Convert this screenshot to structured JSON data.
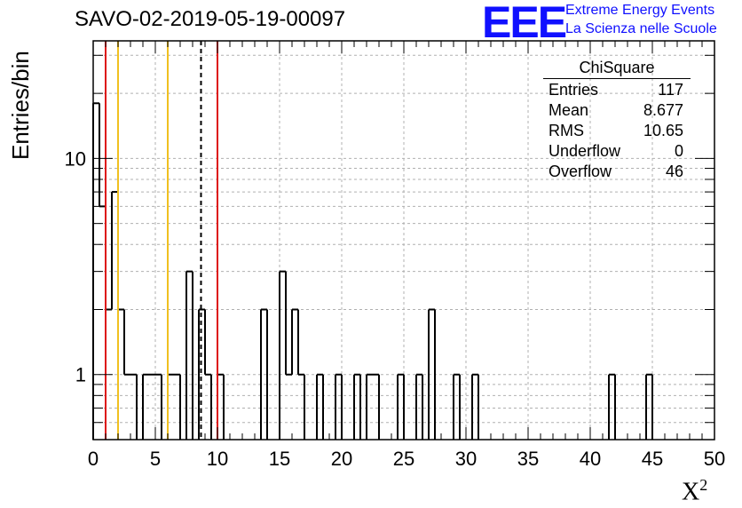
{
  "title": "SAVO-02-2019-05-19-00097",
  "logo": {
    "mark": "EEE",
    "line1": "Extreme Energy Events",
    "line2": "La Scienza nelle Scuole",
    "color": "#1010ff"
  },
  "stats": {
    "name": "ChiSquare",
    "rows": [
      {
        "label": "Entries",
        "value": "117"
      },
      {
        "label": "Mean",
        "value": "8.677"
      },
      {
        "label": "RMS",
        "value": "10.65"
      },
      {
        "label": "Underflow",
        "value": "0"
      },
      {
        "label": "Overflow",
        "value": "46"
      }
    ]
  },
  "chart_data": {
    "type": "bar",
    "title": "SAVO-02-2019-05-19-00097",
    "xlabel": "X",
    "xlabel_sup": "2",
    "ylabel": "Entries/bin",
    "xlim": [
      0,
      50
    ],
    "ylim": [
      0.5,
      35
    ],
    "yscale": "log",
    "grid": true,
    "xticks": [
      0,
      5,
      10,
      15,
      20,
      25,
      30,
      35,
      40,
      45,
      50
    ],
    "yticks_labeled": [
      1,
      10
    ],
    "bin_width": 0.5,
    "histogram": "step",
    "bins": [
      {
        "x": 0.0,
        "y": 18
      },
      {
        "x": 0.5,
        "y": 6
      },
      {
        "x": 1.0,
        "y": 2
      },
      {
        "x": 1.5,
        "y": 7
      },
      {
        "x": 2.0,
        "y": 2
      },
      {
        "x": 2.5,
        "y": 1
      },
      {
        "x": 3.0,
        "y": 1
      },
      {
        "x": 4.0,
        "y": 1
      },
      {
        "x": 4.5,
        "y": 1
      },
      {
        "x": 5.0,
        "y": 1
      },
      {
        "x": 6.0,
        "y": 1
      },
      {
        "x": 6.5,
        "y": 1
      },
      {
        "x": 7.5,
        "y": 3
      },
      {
        "x": 8.5,
        "y": 2
      },
      {
        "x": 9.0,
        "y": 1
      },
      {
        "x": 10.0,
        "y": 1
      },
      {
        "x": 13.5,
        "y": 2
      },
      {
        "x": 15.0,
        "y": 3
      },
      {
        "x": 15.5,
        "y": 1
      },
      {
        "x": 16.0,
        "y": 2
      },
      {
        "x": 16.5,
        "y": 1
      },
      {
        "x": 18.0,
        "y": 1
      },
      {
        "x": 19.5,
        "y": 1
      },
      {
        "x": 21.0,
        "y": 1
      },
      {
        "x": 22.0,
        "y": 1
      },
      {
        "x": 22.5,
        "y": 1
      },
      {
        "x": 24.5,
        "y": 1
      },
      {
        "x": 26.0,
        "y": 1
      },
      {
        "x": 27.0,
        "y": 2
      },
      {
        "x": 29.0,
        "y": 1
      },
      {
        "x": 30.5,
        "y": 1
      },
      {
        "x": 41.5,
        "y": 1
      },
      {
        "x": 44.5,
        "y": 1
      }
    ],
    "vlines": [
      {
        "x": 1.0,
        "color": "#dd1111",
        "style": "solid"
      },
      {
        "x": 2.0,
        "color": "#f0c020",
        "style": "solid"
      },
      {
        "x": 6.0,
        "color": "#f0c020",
        "style": "solid"
      },
      {
        "x": 8.677,
        "color": "#000000",
        "style": "dashed"
      },
      {
        "x": 10.0,
        "color": "#dd1111",
        "style": "solid"
      }
    ]
  }
}
